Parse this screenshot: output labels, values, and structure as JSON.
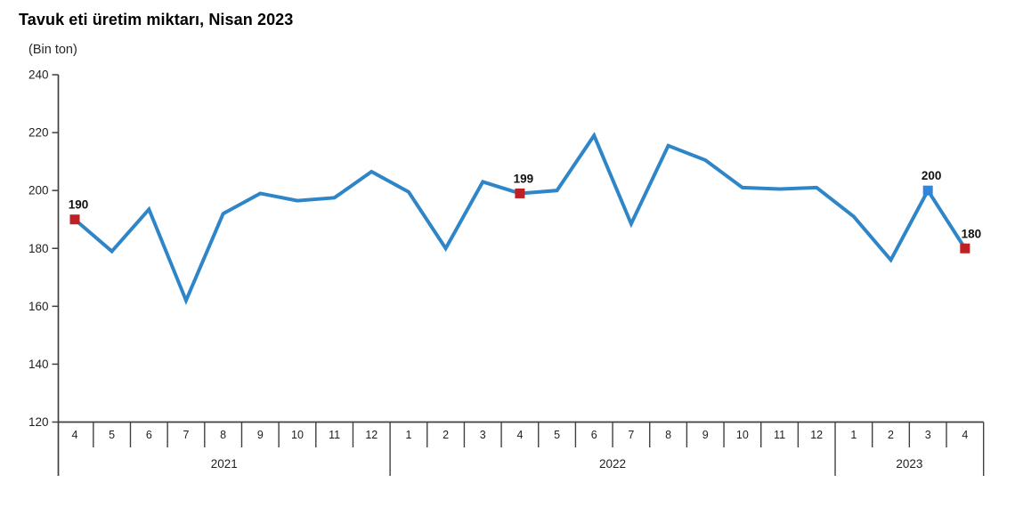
{
  "header": {
    "title": "Tavuk eti üretim miktarı, Nisan 2023",
    "subtitle": "(Bin ton)"
  },
  "chart_data": {
    "type": "line",
    "title": "Tavuk eti üretim miktarı, Nisan 2023",
    "unit_label": "(Bin ton)",
    "x_months": [
      "4",
      "5",
      "6",
      "7",
      "8",
      "9",
      "10",
      "11",
      "12",
      "1",
      "2",
      "3",
      "4",
      "5",
      "6",
      "7",
      "8",
      "9",
      "10",
      "11",
      "12",
      "1",
      "2",
      "3",
      "4"
    ],
    "year_groups": [
      {
        "label": "2021",
        "months": 9
      },
      {
        "label": "2022",
        "months": 12
      },
      {
        "label": "2023",
        "months": 4
      }
    ],
    "series": [
      {
        "name": "Tavuk eti üretim miktarı (Bin ton)",
        "values": [
          190,
          179,
          193.5,
          162,
          192,
          199,
          196.5,
          197.5,
          206.5,
          199.5,
          180,
          203,
          199,
          200,
          219,
          188.5,
          215.5,
          210.5,
          201,
          200.5,
          201,
          191,
          176,
          200,
          180
        ]
      }
    ],
    "markers": [
      {
        "index": 0,
        "label": "190",
        "color": "red"
      },
      {
        "index": 12,
        "label": "199",
        "color": "red"
      },
      {
        "index": 23,
        "label": "200",
        "color": "blue"
      },
      {
        "index": 24,
        "label": "180",
        "color": "red",
        "label_dx": 7
      }
    ],
    "ylim": [
      120,
      240
    ],
    "yticks": [
      "120",
      "140",
      "160",
      "180",
      "200",
      "220",
      "240"
    ],
    "grid": false,
    "legend": "none",
    "colors": {
      "line": "#2E86C8",
      "marker_red": "#BF2024",
      "marker_blue": "#2E86DE",
      "axis": "#404040",
      "text": "#1F1F1F",
      "label_text": "#111111"
    }
  }
}
